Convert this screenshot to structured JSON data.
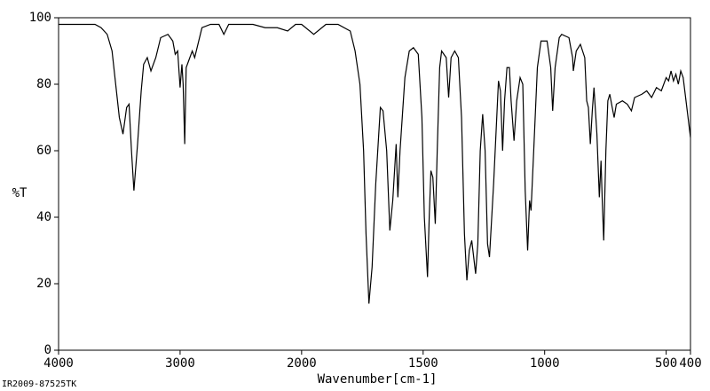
{
  "chart_data": {
    "type": "line",
    "ylabel": "%T",
    "xlabel": "Wavenumber[cm-1]",
    "footnote": "IR2009-87525TK",
    "xlim": [
      4000,
      400
    ],
    "x_scale_break": 2000,
    "xticks": [
      4000,
      3000,
      2000,
      1500,
      1000,
      500,
      400
    ],
    "ylim": [
      0,
      100
    ],
    "yticks": [
      0,
      20,
      40,
      60,
      80,
      100
    ],
    "color": "#000000",
    "x": [
      4000,
      3700,
      3650,
      3600,
      3560,
      3530,
      3500,
      3470,
      3440,
      3420,
      3400,
      3380,
      3350,
      3320,
      3300,
      3270,
      3240,
      3200,
      3160,
      3100,
      3060,
      3040,
      3020,
      3000,
      2985,
      2975,
      2962,
      2950,
      2900,
      2880,
      2820,
      2750,
      2680,
      2640,
      2600,
      2400,
      2300,
      2200,
      2115,
      2050,
      2000,
      1950,
      1900,
      1850,
      1800,
      1780,
      1760,
      1745,
      1735,
      1723,
      1710,
      1695,
      1676,
      1665,
      1650,
      1637,
      1625,
      1611,
      1604,
      1595,
      1575,
      1557,
      1540,
      1520,
      1505,
      1495,
      1482,
      1475,
      1468,
      1460,
      1450,
      1442,
      1432,
      1424,
      1405,
      1395,
      1385,
      1370,
      1355,
      1342,
      1330,
      1320,
      1310,
      1300,
      1284,
      1275,
      1265,
      1255,
      1245,
      1235,
      1227,
      1210,
      1190,
      1182,
      1173,
      1165,
      1155,
      1145,
      1138,
      1126,
      1115,
      1101,
      1090,
      1080,
      1070,
      1062,
      1056,
      1045,
      1030,
      1015,
      990,
      975,
      967,
      957,
      940,
      930,
      900,
      885,
      882,
      870,
      853,
      835,
      827,
      820,
      812,
      804,
      797,
      785,
      775,
      768,
      763,
      757,
      748,
      740,
      732,
      722,
      714,
      705,
      680,
      660,
      643,
      630,
      600,
      580,
      560,
      540,
      520,
      500,
      490,
      480,
      470,
      460,
      450,
      440,
      430,
      420,
      410,
      400
    ],
    "values": [
      98,
      98,
      97,
      95,
      90,
      80,
      70,
      65,
      73,
      74,
      60,
      48,
      62,
      78,
      86,
      88,
      84,
      88,
      94,
      95,
      93,
      89,
      90,
      79,
      86,
      80,
      62,
      85,
      90,
      88,
      97,
      98,
      98,
      95,
      98,
      98,
      97,
      97,
      96,
      98,
      98,
      95,
      98,
      98,
      96,
      90,
      80,
      60,
      35,
      14,
      25,
      50,
      73,
      72,
      60,
      36,
      45,
      62,
      46,
      60,
      82,
      90,
      91,
      89,
      70,
      40,
      22,
      40,
      54,
      52,
      38,
      60,
      85,
      90,
      88,
      76,
      88,
      90,
      88,
      70,
      35,
      21,
      30,
      33,
      23,
      32,
      60,
      71,
      60,
      32,
      28,
      50,
      81,
      78,
      60,
      75,
      85,
      85,
      75,
      63,
      75,
      82,
      80,
      48,
      30,
      45,
      42,
      60,
      85,
      93,
      93,
      85,
      72,
      85,
      94,
      95,
      94,
      88,
      84,
      90,
      92,
      88,
      75,
      73,
      62,
      72,
      79,
      65,
      46,
      57,
      45,
      33,
      60,
      75,
      77,
      73,
      70,
      74,
      75,
      74,
      72,
      76,
      77,
      78,
      76,
      79,
      78,
      82,
      81,
      84,
      81,
      83,
      80,
      84,
      82,
      76,
      70,
      64
    ]
  }
}
